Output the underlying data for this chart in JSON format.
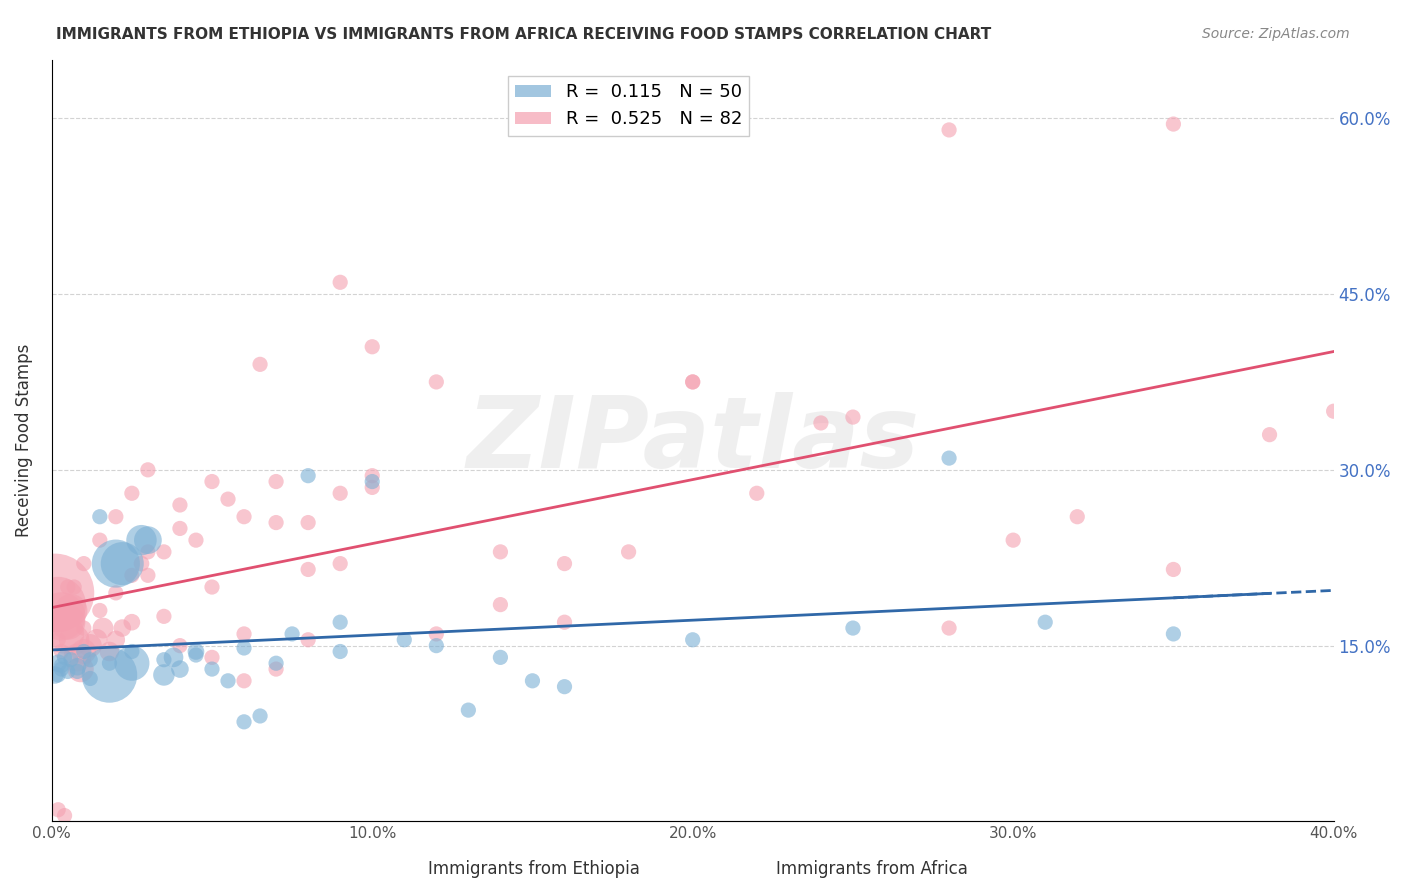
{
  "title": "IMMIGRANTS FROM ETHIOPIA VS IMMIGRANTS FROM AFRICA RECEIVING FOOD STAMPS CORRELATION CHART",
  "source": "Source: ZipAtlas.com",
  "xlabel_ethiopia": "Immigrants from Ethiopia",
  "xlabel_africa": "Immigrants from Africa",
  "ylabel": "Receiving Food Stamps",
  "xlim": [
    0.0,
    0.4
  ],
  "ylim": [
    0.0,
    0.65
  ],
  "yticks": [
    0.15,
    0.3,
    0.45,
    0.6
  ],
  "xticks": [
    0.0,
    0.1,
    0.2,
    0.3,
    0.4
  ],
  "ytick_labels": [
    "15.0%",
    "30.0%",
    "45.0%",
    "60.0%"
  ],
  "xtick_labels": [
    "0.0%",
    "10.0%",
    "20.0%",
    "30.0%",
    "40.0%"
  ],
  "legend_R1": "R =  0.115",
  "legend_N1": "N = 50",
  "legend_R2": "R =  0.525",
  "legend_N2": "N = 82",
  "color_ethiopia": "#7BAFD4",
  "color_africa": "#F4A0B0",
  "color_trend_ethiopia": "#3068A8",
  "color_trend_africa": "#E05070",
  "watermark": "ZIPatlas",
  "ethiopia_x": [
    0.001,
    0.003,
    0.005,
    0.002,
    0.004,
    0.006,
    0.008,
    0.01,
    0.012,
    0.015,
    0.018,
    0.02,
    0.022,
    0.025,
    0.028,
    0.03,
    0.035,
    0.038,
    0.04,
    0.045,
    0.05,
    0.055,
    0.06,
    0.065,
    0.07,
    0.08,
    0.09,
    0.1,
    0.11,
    0.12,
    0.13,
    0.14,
    0.15,
    0.16,
    0.002,
    0.003,
    0.008,
    0.012,
    0.018,
    0.025,
    0.035,
    0.045,
    0.06,
    0.075,
    0.09,
    0.2,
    0.25,
    0.31,
    0.35,
    0.28
  ],
  "ethiopia_y": [
    0.125,
    0.13,
    0.128,
    0.135,
    0.14,
    0.138,
    0.132,
    0.145,
    0.138,
    0.26,
    0.125,
    0.22,
    0.22,
    0.135,
    0.24,
    0.24,
    0.125,
    0.14,
    0.13,
    0.145,
    0.13,
    0.12,
    0.085,
    0.09,
    0.135,
    0.295,
    0.145,
    0.29,
    0.155,
    0.15,
    0.095,
    0.14,
    0.12,
    0.115,
    0.125,
    0.133,
    0.128,
    0.122,
    0.135,
    0.145,
    0.138,
    0.142,
    0.148,
    0.16,
    0.17,
    0.155,
    0.165,
    0.17,
    0.16,
    0.31
  ],
  "ethiopia_size": [
    20,
    15,
    15,
    20,
    15,
    15,
    20,
    15,
    15,
    15,
    200,
    150,
    120,
    80,
    60,
    50,
    30,
    25,
    20,
    18,
    15,
    15,
    15,
    15,
    15,
    15,
    15,
    15,
    15,
    15,
    15,
    15,
    15,
    15,
    15,
    15,
    15,
    15,
    15,
    15,
    15,
    15,
    15,
    15,
    15,
    15,
    15,
    15,
    15,
    15
  ],
  "africa_x": [
    0.001,
    0.002,
    0.003,
    0.004,
    0.005,
    0.006,
    0.007,
    0.008,
    0.009,
    0.01,
    0.012,
    0.014,
    0.016,
    0.018,
    0.02,
    0.022,
    0.025,
    0.028,
    0.03,
    0.035,
    0.04,
    0.045,
    0.05,
    0.055,
    0.06,
    0.065,
    0.07,
    0.08,
    0.09,
    0.1,
    0.002,
    0.003,
    0.005,
    0.007,
    0.01,
    0.015,
    0.02,
    0.025,
    0.03,
    0.035,
    0.04,
    0.05,
    0.06,
    0.07,
    0.08,
    0.09,
    0.1,
    0.12,
    0.14,
    0.16,
    0.18,
    0.2,
    0.22,
    0.25,
    0.28,
    0.3,
    0.32,
    0.35,
    0.38,
    0.4,
    0.005,
    0.01,
    0.015,
    0.02,
    0.025,
    0.03,
    0.04,
    0.05,
    0.06,
    0.07,
    0.08,
    0.09,
    0.1,
    0.12,
    0.14,
    0.16,
    0.2,
    0.24,
    0.28,
    0.35,
    0.002,
    0.004
  ],
  "africa_y": [
    0.195,
    0.185,
    0.175,
    0.16,
    0.17,
    0.18,
    0.155,
    0.14,
    0.13,
    0.145,
    0.15,
    0.155,
    0.165,
    0.145,
    0.155,
    0.165,
    0.17,
    0.22,
    0.21,
    0.23,
    0.25,
    0.24,
    0.29,
    0.275,
    0.26,
    0.39,
    0.29,
    0.255,
    0.28,
    0.295,
    0.155,
    0.145,
    0.175,
    0.2,
    0.165,
    0.18,
    0.195,
    0.21,
    0.23,
    0.175,
    0.15,
    0.14,
    0.12,
    0.13,
    0.155,
    0.22,
    0.285,
    0.16,
    0.185,
    0.22,
    0.23,
    0.375,
    0.28,
    0.345,
    0.165,
    0.24,
    0.26,
    0.215,
    0.33,
    0.35,
    0.2,
    0.22,
    0.24,
    0.26,
    0.28,
    0.3,
    0.27,
    0.2,
    0.16,
    0.255,
    0.215,
    0.46,
    0.405,
    0.375,
    0.23,
    0.17,
    0.375,
    0.34,
    0.59,
    0.595,
    0.01,
    0.005
  ],
  "africa_size": [
    400,
    200,
    150,
    100,
    80,
    70,
    60,
    50,
    45,
    40,
    35,
    30,
    28,
    25,
    22,
    20,
    18,
    16,
    15,
    15,
    15,
    15,
    15,
    15,
    15,
    15,
    15,
    15,
    15,
    15,
    15,
    15,
    15,
    15,
    15,
    15,
    15,
    15,
    15,
    15,
    15,
    15,
    15,
    15,
    15,
    15,
    15,
    15,
    15,
    15,
    15,
    15,
    15,
    15,
    15,
    15,
    15,
    15,
    15,
    15,
    15,
    15,
    15,
    15,
    15,
    15,
    15,
    15,
    15,
    15,
    15,
    15,
    15,
    15,
    15,
    15,
    15,
    15,
    15,
    15,
    15,
    15
  ]
}
